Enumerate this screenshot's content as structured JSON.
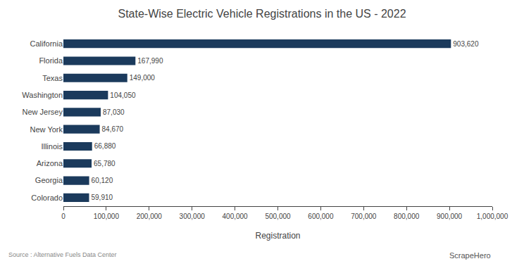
{
  "chart_data": {
    "type": "bar",
    "orientation": "horizontal",
    "title": "State-Wise Electric Vehicle Registrations in the US - 2022",
    "xlabel": "Registration",
    "categories": [
      "California",
      "Florida",
      "Texas",
      "Washington",
      "New Jersey",
      "New York",
      "Illinois",
      "Arizona",
      "Georgia",
      "Colorado"
    ],
    "values": [
      903620,
      167990,
      149000,
      104050,
      87030,
      84670,
      66880,
      65780,
      60120,
      59910
    ],
    "value_labels": [
      "903,620",
      "167,990",
      "149,000",
      "104,050",
      "87,030",
      "84,670",
      "66,880",
      "65,780",
      "60,120",
      "59,910"
    ],
    "data_labels": true,
    "color": "#1b3a5c",
    "xlim": [
      0,
      1000000
    ],
    "xticks": [
      0,
      {
        "value": 100000,
        "label": "100,000"
      },
      {
        "value": 200000,
        "label": "200,000"
      },
      {
        "value": 300000,
        "label": "300,000"
      },
      {
        "value": 400000,
        "label": "400,000"
      },
      {
        "value": 500000,
        "label": "500,000"
      },
      {
        "value": 600000,
        "label": "600,000"
      },
      {
        "value": 700000,
        "label": "700,000"
      },
      {
        "value": 800000,
        "label": "800,000"
      },
      {
        "value": 900000,
        "label": "900,000"
      },
      {
        "value": 1000000,
        "label": "1,000,000"
      }
    ],
    "grid": false,
    "annotations": [
      "Source : Alternative Fuels Data Center",
      "ScrapeHero"
    ]
  }
}
